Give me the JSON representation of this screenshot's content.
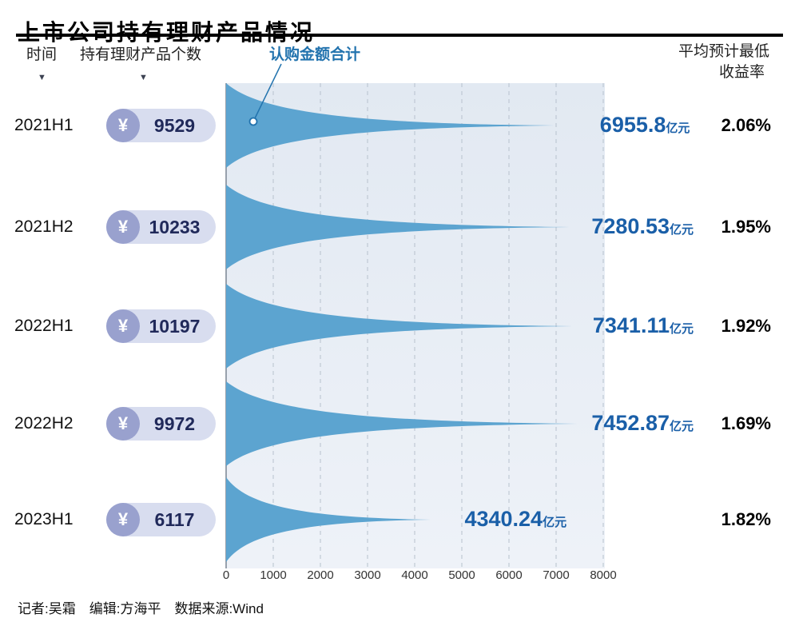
{
  "title": "上市公司持有理财产品情况",
  "headers": {
    "time": "时间",
    "count": "持有理财产品个数",
    "amount": "认购金额合计",
    "rate_line1": "平均预计最低",
    "rate_line2": "收益率"
  },
  "currency_symbol": "¥",
  "footer": "记者:吴霜　编辑:方海平　数据来源:Wind",
  "colors": {
    "accent": "#2273ae",
    "amount_text": "#1a5fa8",
    "funnel": "#5ca4d0",
    "panel_top": "#e2e9f2",
    "panel_bottom": "#eef2f8",
    "grid": "#b7c1cd",
    "axis": "#98a1ac",
    "pill": "#d8ddef",
    "coin": "#99a1ce",
    "count_text": "#20295a"
  },
  "chart_data": {
    "type": "area",
    "title": "上市公司持有理财产品情况",
    "xlabel": "",
    "ylabel": "",
    "x_axis": {
      "min": 0,
      "max": 8000,
      "ticks": [
        0,
        1000,
        2000,
        3000,
        4000,
        5000,
        6000,
        7000,
        8000
      ]
    },
    "grid": "dashed-vertical",
    "legend": "none",
    "rows": [
      {
        "time": "2021H1",
        "count": "9529",
        "amount_value": 6955.8,
        "amount_label": "6955.8",
        "unit": "亿元",
        "rate": "2.06%"
      },
      {
        "time": "2021H2",
        "count": "10233",
        "amount_value": 7280.53,
        "amount_label": "7280.53",
        "unit": "亿元",
        "rate": "1.95%"
      },
      {
        "time": "2022H1",
        "count": "10197",
        "amount_value": 7341.11,
        "amount_label": "7341.11",
        "unit": "亿元",
        "rate": "1.92%"
      },
      {
        "time": "2022H2",
        "count": "9972",
        "amount_value": 7452.87,
        "amount_label": "7452.87",
        "unit": "亿元",
        "rate": "1.69%"
      },
      {
        "time": "2023H1",
        "count": "6117",
        "amount_value": 4340.24,
        "amount_label": "4340.24",
        "unit": "亿元",
        "rate": "1.82%"
      }
    ]
  }
}
